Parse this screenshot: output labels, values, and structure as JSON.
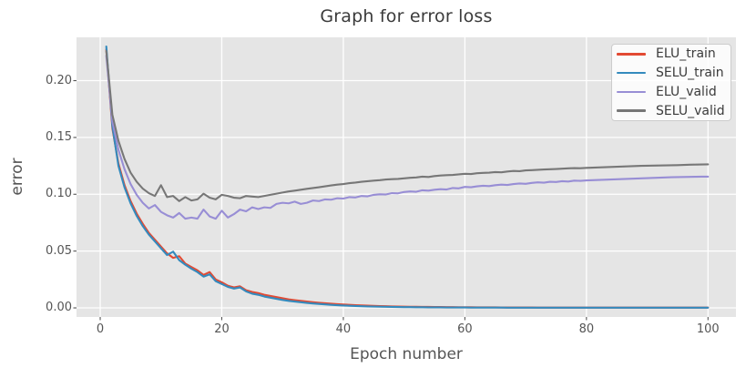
{
  "figure": {
    "background": "#ffffff"
  },
  "chart_data": {
    "type": "line",
    "title": "Graph for error loss",
    "xlabel": "Epoch number",
    "ylabel": "error",
    "grid": true,
    "legend_position": "upper right",
    "xlim": [
      -3.9,
      104.6
    ],
    "ylim": [
      -0.008,
      0.2381
    ],
    "x_tick_values": [
      0,
      20,
      40,
      60,
      80,
      100
    ],
    "x_tick_labels": [
      "0",
      "20",
      "40",
      "60",
      "80",
      "100"
    ],
    "y_tick_values": [
      0.0,
      0.05,
      0.1,
      0.15,
      0.2
    ],
    "y_tick_labels": [
      "0.00",
      "0.05",
      "0.10",
      "0.15",
      "0.20"
    ],
    "style": {
      "plot_bg": "#e5e5e5",
      "grid_color": "#ffffff",
      "tick_color": "#555555",
      "text_color": "#555555",
      "title_color": "#3b3b3b",
      "legend_bg": "rgba(255,255,255,0.82)",
      "legend_border": "#cccccc"
    },
    "epochs": [
      1,
      2,
      3,
      4,
      5,
      6,
      7,
      8,
      9,
      10,
      11,
      12,
      13,
      14,
      15,
      16,
      17,
      18,
      19,
      20,
      21,
      22,
      23,
      24,
      25,
      26,
      27,
      28,
      29,
      30,
      31,
      32,
      33,
      34,
      35,
      36,
      37,
      38,
      39,
      40,
      41,
      42,
      43,
      44,
      45,
      46,
      47,
      48,
      49,
      50,
      51,
      52,
      53,
      54,
      55,
      56,
      57,
      58,
      59,
      60,
      61,
      62,
      63,
      64,
      65,
      66,
      67,
      68,
      69,
      70,
      71,
      72,
      73,
      74,
      75,
      76,
      77,
      78,
      79,
      80,
      81,
      82,
      83,
      84,
      85,
      86,
      87,
      88,
      89,
      90,
      91,
      92,
      93,
      94,
      95,
      96,
      97,
      98,
      99,
      100
    ],
    "series": [
      {
        "name": "ELU_train",
        "color": "#e24a33",
        "values": [
          0.2275,
          0.158,
          0.127,
          0.108,
          0.094,
          0.083,
          0.074,
          0.066,
          0.06,
          0.054,
          0.048,
          0.044,
          0.0455,
          0.039,
          0.036,
          0.033,
          0.029,
          0.0315,
          0.025,
          0.0225,
          0.0195,
          0.018,
          0.019,
          0.0155,
          0.014,
          0.013,
          0.0115,
          0.0105,
          0.0095,
          0.0085,
          0.0075,
          0.0068,
          0.0062,
          0.0056,
          0.005,
          0.0045,
          0.0041,
          0.0037,
          0.0033,
          0.003,
          0.0027,
          0.0024,
          0.0022,
          0.002,
          0.0018,
          0.0016,
          0.0015,
          0.0013,
          0.0012,
          0.0011,
          0.001,
          0.001,
          0.0009,
          0.0009,
          0.0008,
          0.0008,
          0.0007,
          0.0007,
          0.0006,
          0.0006,
          0.0006,
          0.0005,
          0.0005,
          0.0005,
          0.0005,
          0.0004,
          0.0004,
          0.0004,
          0.0004,
          0.0004,
          0.0004,
          0.0003,
          0.0003,
          0.0003,
          0.0003,
          0.0003,
          0.0003,
          0.0003,
          0.0003,
          0.0003,
          0.0003,
          0.0003,
          0.0003,
          0.0003,
          0.0003,
          0.0003,
          0.0003,
          0.0003,
          0.0003,
          0.0003,
          0.0003,
          0.0003,
          0.0003,
          0.0003,
          0.0003,
          0.0003,
          0.0003,
          0.0003,
          0.0003,
          0.0003
        ]
      },
      {
        "name": "SELU_train",
        "color": "#348abd",
        "values": [
          0.23,
          0.16,
          0.125,
          0.106,
          0.092,
          0.081,
          0.072,
          0.0645,
          0.0585,
          0.0525,
          0.0465,
          0.0495,
          0.042,
          0.038,
          0.0345,
          0.0315,
          0.0275,
          0.0295,
          0.0235,
          0.021,
          0.0185,
          0.017,
          0.018,
          0.0145,
          0.0125,
          0.0115,
          0.01,
          0.009,
          0.008,
          0.007,
          0.0062,
          0.0056,
          0.005,
          0.0044,
          0.0039,
          0.0035,
          0.0031,
          0.0027,
          0.0024,
          0.0021,
          0.0019,
          0.0017,
          0.0015,
          0.0013,
          0.0012,
          0.0011,
          0.001,
          0.0009,
          0.0008,
          0.0007,
          0.0007,
          0.0006,
          0.0006,
          0.0005,
          0.0005,
          0.0005,
          0.0004,
          0.0004,
          0.0004,
          0.0004,
          0.0003,
          0.0003,
          0.0003,
          0.0003,
          0.0003,
          0.0003,
          0.0002,
          0.0002,
          0.0002,
          0.0002,
          0.0002,
          0.0002,
          0.0002,
          0.0002,
          0.0002,
          0.0002,
          0.0002,
          0.0002,
          0.0002,
          0.0002,
          0.0002,
          0.0002,
          0.0002,
          0.0002,
          0.0002,
          0.0002,
          0.0002,
          0.0002,
          0.0002,
          0.0002,
          0.0002,
          0.0002,
          0.0002,
          0.0002,
          0.0002,
          0.0002,
          0.0002,
          0.0002,
          0.0002,
          0.0002
        ]
      },
      {
        "name": "ELU_valid",
        "color": "#988ed5",
        "values": [
          0.222,
          0.164,
          0.139,
          0.122,
          0.109,
          0.0995,
          0.0925,
          0.0875,
          0.0905,
          0.0845,
          0.0815,
          0.0795,
          0.0835,
          0.0785,
          0.0795,
          0.0785,
          0.0865,
          0.0805,
          0.0785,
          0.0855,
          0.0795,
          0.0825,
          0.0865,
          0.085,
          0.0885,
          0.087,
          0.0885,
          0.088,
          0.0915,
          0.0925,
          0.092,
          0.0935,
          0.0915,
          0.0925,
          0.0945,
          0.094,
          0.0955,
          0.0952,
          0.0965,
          0.0962,
          0.0975,
          0.0972,
          0.0985,
          0.0982,
          0.0995,
          0.1,
          0.0998,
          0.101,
          0.1008,
          0.102,
          0.1025,
          0.1022,
          0.1035,
          0.1032,
          0.104,
          0.1045,
          0.1042,
          0.1055,
          0.1052,
          0.1065,
          0.1062,
          0.107,
          0.1075,
          0.1072,
          0.108,
          0.1085,
          0.1082,
          0.109,
          0.1095,
          0.1092,
          0.11,
          0.1105,
          0.1102,
          0.111,
          0.1108,
          0.1115,
          0.1112,
          0.112,
          0.1118,
          0.1122,
          0.1124,
          0.1126,
          0.1128,
          0.113,
          0.1132,
          0.1134,
          0.1136,
          0.1138,
          0.114,
          0.1142,
          0.1144,
          0.1146,
          0.1148,
          0.115,
          0.1151,
          0.1152,
          0.1153,
          0.1154,
          0.1155,
          0.1155
        ]
      },
      {
        "name": "SELU_valid",
        "color": "#777777",
        "values": [
          0.226,
          0.17,
          0.147,
          0.131,
          0.119,
          0.111,
          0.105,
          0.101,
          0.0985,
          0.108,
          0.0975,
          0.0985,
          0.094,
          0.0975,
          0.0945,
          0.0955,
          0.1005,
          0.097,
          0.0955,
          0.0995,
          0.0985,
          0.097,
          0.0965,
          0.0985,
          0.098,
          0.0975,
          0.0985,
          0.0995,
          0.1005,
          0.1015,
          0.1025,
          0.1032,
          0.104,
          0.1048,
          0.1055,
          0.1062,
          0.107,
          0.1078,
          0.1085,
          0.109,
          0.1098,
          0.1103,
          0.111,
          0.1115,
          0.112,
          0.1124,
          0.113,
          0.1133,
          0.1135,
          0.114,
          0.1145,
          0.1148,
          0.1155,
          0.1152,
          0.116,
          0.1165,
          0.1168,
          0.117,
          0.1175,
          0.118,
          0.1178,
          0.1185,
          0.1188,
          0.119,
          0.1195,
          0.1193,
          0.12,
          0.1205,
          0.1203,
          0.121,
          0.1212,
          0.1215,
          0.1218,
          0.122,
          0.1222,
          0.1225,
          0.1228,
          0.123,
          0.1229,
          0.1232,
          0.1234,
          0.1236,
          0.1238,
          0.124,
          0.1242,
          0.1244,
          0.1246,
          0.1248,
          0.125,
          0.1251,
          0.1252,
          0.1253,
          0.1254,
          0.1255,
          0.1256,
          0.1258,
          0.126,
          0.1261,
          0.1262,
          0.1263
        ]
      }
    ]
  }
}
